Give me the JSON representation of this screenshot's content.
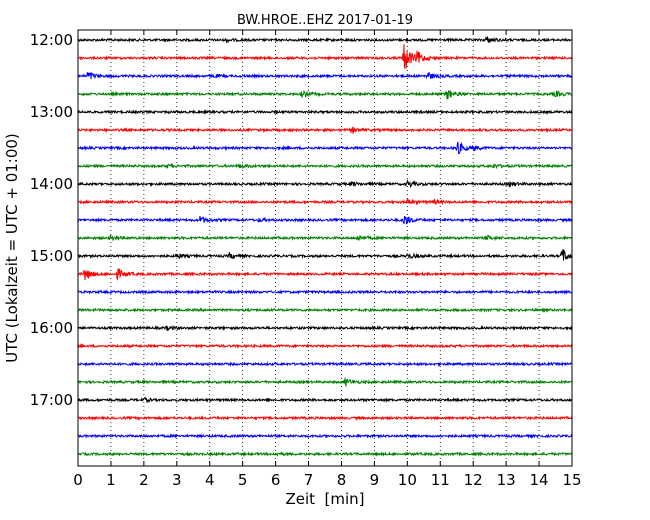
{
  "chart_data": {
    "type": "line",
    "title": "BW.HROE..EHZ 2017-01-19",
    "xlabel": "Zeit  [min]",
    "ylabel": "UTC (Lokalzeit = UTC + 01:00)",
    "xlim": [
      0,
      15
    ],
    "x_ticks": [
      "0",
      "1",
      "2",
      "3",
      "4",
      "5",
      "6",
      "7",
      "8",
      "9",
      "10",
      "11",
      "12",
      "13",
      "14",
      "15"
    ],
    "y_ticks": [
      "12:00",
      "13:00",
      "14:00",
      "15:00",
      "16:00",
      "17:00"
    ],
    "grid": "vertical dotted",
    "series_colors": [
      "#000000",
      "#ff0000",
      "#0000ff",
      "#008000"
    ],
    "traces": [
      {
        "start": "12:00",
        "color": "#000000",
        "events": [
          {
            "t": 12.4,
            "amp": 0.35
          },
          {
            "t": 4.5,
            "amp": 0.15
          }
        ]
      },
      {
        "start": "12:15",
        "color": "#ff0000",
        "events": [
          {
            "t": 9.9,
            "amp": 1.6
          },
          {
            "t": 10.3,
            "amp": 0.6
          }
        ]
      },
      {
        "start": "12:30",
        "color": "#0000ff",
        "events": [
          {
            "t": 0.3,
            "amp": 0.5
          },
          {
            "t": 10.6,
            "amp": 0.45
          },
          {
            "t": 4.1,
            "amp": 0.15
          }
        ]
      },
      {
        "start": "12:45",
        "color": "#008000",
        "events": [
          {
            "t": 6.8,
            "amp": 0.3
          },
          {
            "t": 11.2,
            "amp": 0.6
          },
          {
            "t": 14.5,
            "amp": 0.3
          }
        ]
      },
      {
        "start": "13:00",
        "color": "#000000",
        "events": []
      },
      {
        "start": "13:15",
        "color": "#ff0000",
        "events": [
          {
            "t": 8.3,
            "amp": 0.3
          }
        ]
      },
      {
        "start": "13:30",
        "color": "#0000ff",
        "events": [
          {
            "t": 11.5,
            "amp": 0.8
          },
          {
            "t": 12.0,
            "amp": 0.2
          }
        ]
      },
      {
        "start": "13:45",
        "color": "#008000",
        "events": [
          {
            "t": 4.9,
            "amp": 0.2
          },
          {
            "t": 2.7,
            "amp": 0.15
          },
          {
            "t": 12.6,
            "amp": 0.2
          }
        ]
      },
      {
        "start": "14:00",
        "color": "#000000",
        "events": [
          {
            "t": 10.0,
            "amp": 0.35
          },
          {
            "t": 8.3,
            "amp": 0.2
          },
          {
            "t": 13.1,
            "amp": 0.25
          }
        ]
      },
      {
        "start": "14:15",
        "color": "#ff0000",
        "events": [
          {
            "t": 10.0,
            "amp": 0.3
          },
          {
            "t": 10.8,
            "amp": 0.2
          }
        ]
      },
      {
        "start": "14:30",
        "color": "#0000ff",
        "events": [
          {
            "t": 3.7,
            "amp": 0.4
          },
          {
            "t": 9.9,
            "amp": 0.6
          },
          {
            "t": 5.5,
            "amp": 0.15
          }
        ]
      },
      {
        "start": "14:45",
        "color": "#008000",
        "events": [
          {
            "t": 1.0,
            "amp": 0.3
          },
          {
            "t": 8.5,
            "amp": 0.3
          },
          {
            "t": 12.4,
            "amp": 0.25
          }
        ]
      },
      {
        "start": "15:00",
        "color": "#000000",
        "events": [
          {
            "t": 14.7,
            "amp": 0.8
          },
          {
            "t": 3.0,
            "amp": 0.25
          },
          {
            "t": 4.6,
            "amp": 0.3
          },
          {
            "t": 10.0,
            "amp": 0.3
          }
        ]
      },
      {
        "start": "15:15",
        "color": "#ff0000",
        "events": [
          {
            "t": 0.2,
            "amp": 0.7
          },
          {
            "t": 1.2,
            "amp": 0.55
          }
        ]
      },
      {
        "start": "15:30",
        "color": "#0000ff",
        "events": []
      },
      {
        "start": "15:45",
        "color": "#008000",
        "events": []
      },
      {
        "start": "16:00",
        "color": "#000000",
        "events": [
          {
            "t": 2.7,
            "amp": 0.2
          }
        ]
      },
      {
        "start": "16:15",
        "color": "#ff0000",
        "events": []
      },
      {
        "start": "16:30",
        "color": "#0000ff",
        "events": []
      },
      {
        "start": "16:45",
        "color": "#008000",
        "events": [
          {
            "t": 8.1,
            "amp": 0.4
          }
        ]
      },
      {
        "start": "17:00",
        "color": "#000000",
        "events": [
          {
            "t": 2.0,
            "amp": 0.2
          }
        ]
      },
      {
        "start": "17:15",
        "color": "#ff0000",
        "events": []
      },
      {
        "start": "17:30",
        "color": "#0000ff",
        "events": []
      },
      {
        "start": "17:45",
        "color": "#008000",
        "events": [
          {
            "t": 6.0,
            "amp": 0.15
          }
        ]
      }
    ]
  }
}
